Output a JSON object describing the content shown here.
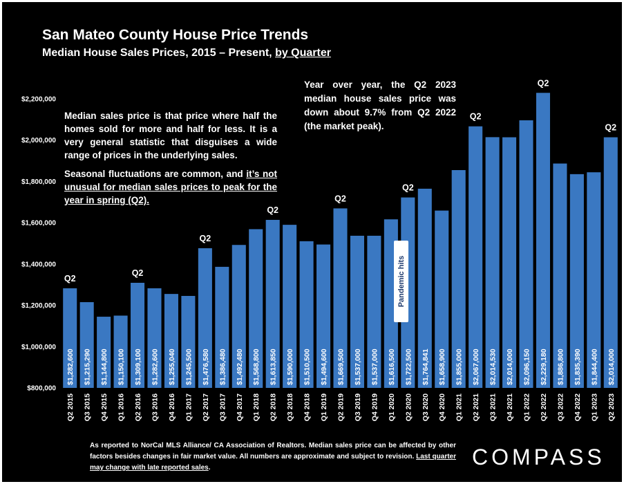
{
  "title": "San Mateo County House Price Trends",
  "subtitle_main": "Median House Sales Prices, 2015 – Present, ",
  "subtitle_link": "by Quarter",
  "note_left_p1": "Median sales price is that price where half the homes sold for more and half for less. It is a very general statistic that disguises a wide range of prices in the underlying sales.",
  "note_left_p2_start": "Seasonal fluctuations are common, and ",
  "note_left_p2_underlined": "it’s not unusual for median sales prices to peak for the year in spring (Q2).",
  "note_right": "Year over year, the Q2 2023 median house sales price was down about 9.7% from Q2 2022 (the market peak).",
  "pandemic_label": "Pandemic hits",
  "footer_text": "As reported to NorCal MLS Alliance/ CA Association of Realtors. Median sales price can be affected by other factors besides changes in fair market value. All numbers are approximate and subject to revision. ",
  "footer_link": "Last quarter may change with late reported sales",
  "footer_end": ".",
  "logo": "COMPASS",
  "chart_data": {
    "type": "bar",
    "title": "San Mateo County House Price Trends",
    "subtitle": "Median House Sales Prices, 2015 – Present, by Quarter",
    "categories": [
      "Q2 2015",
      "Q3 2015",
      "Q4 2015",
      "Q1 2016",
      "Q2 2016",
      "Q3 2016",
      "Q4 2016",
      "Q1 2017",
      "Q2 2017",
      "Q3 2017",
      "Q4 2017",
      "Q1 2018",
      "Q2 2018",
      "Q3 2018",
      "Q4 2018",
      "Q1 2019",
      "Q2 2019",
      "Q3 2019",
      "Q4 2019",
      "Q1 2020",
      "Q2 2020",
      "Q3 2020",
      "Q4 2020",
      "Q1 2021",
      "Q2 2021",
      "Q3 2021",
      "Q4 2021",
      "Q1 2022",
      "Q2 2022",
      "Q3 2022",
      "Q4 2022",
      "Q1 2023",
      "Q2 2023"
    ],
    "values": [
      1282600,
      1215290,
      1144800,
      1150100,
      1309100,
      1282600,
      1255040,
      1245500,
      1476580,
      1386480,
      1492480,
      1568800,
      1613850,
      1590000,
      1510500,
      1494600,
      1669500,
      1537000,
      1537000,
      1616500,
      1722500,
      1764841,
      1658900,
      1855000,
      2067000,
      2014530,
      2014000,
      2096150,
      2229180,
      1886800,
      1835390,
      1844400,
      2014000
    ],
    "value_labels": [
      "$1,282,600",
      "$1,215,290",
      "$1,144,800",
      "$1,150,100",
      "$1,309,100",
      "$1,282,600",
      "$1,255,040",
      "$1,245,500",
      "$1,476,580",
      "$1,386,480",
      "$1,492,480",
      "$1,568,800",
      "$1,613,850",
      "$1,590,000",
      "$1,510,500",
      "$1,494,600",
      "$1,669,500",
      "$1,537,000",
      "$1,537,000",
      "$1,616,500",
      "$1,722,500",
      "$1,764,841",
      "$1,658,900",
      "$1,855,000",
      "$2,067,000",
      "$2,014,530",
      "$2,014,000",
      "$2,096,150",
      "$2,229,180",
      "$1,886,800",
      "$1,835,390",
      "$1,844,400",
      "$2,014,000"
    ],
    "top_labels": [
      "Q2",
      "",
      "",
      "",
      "Q2",
      "",
      "",
      "",
      "Q2",
      "",
      "",
      "",
      "Q2",
      "",
      "",
      "",
      "Q2",
      "",
      "",
      "",
      "Q2",
      "",
      "",
      "",
      "Q2",
      "",
      "",
      "",
      "Q2",
      "",
      "",
      "",
      "Q2"
    ],
    "ylim": [
      800000,
      2200000
    ],
    "yticks": [
      800000,
      1000000,
      1200000,
      1400000,
      1600000,
      1800000,
      2000000,
      2200000
    ],
    "ytick_labels": [
      "$800,000",
      "$1,000,000",
      "$1,200,000",
      "$1,400,000",
      "$1,600,000",
      "$1,800,000",
      "$2,000,000",
      "$2,200,000"
    ],
    "grid": false,
    "bar_color": "#3a78c2"
  }
}
